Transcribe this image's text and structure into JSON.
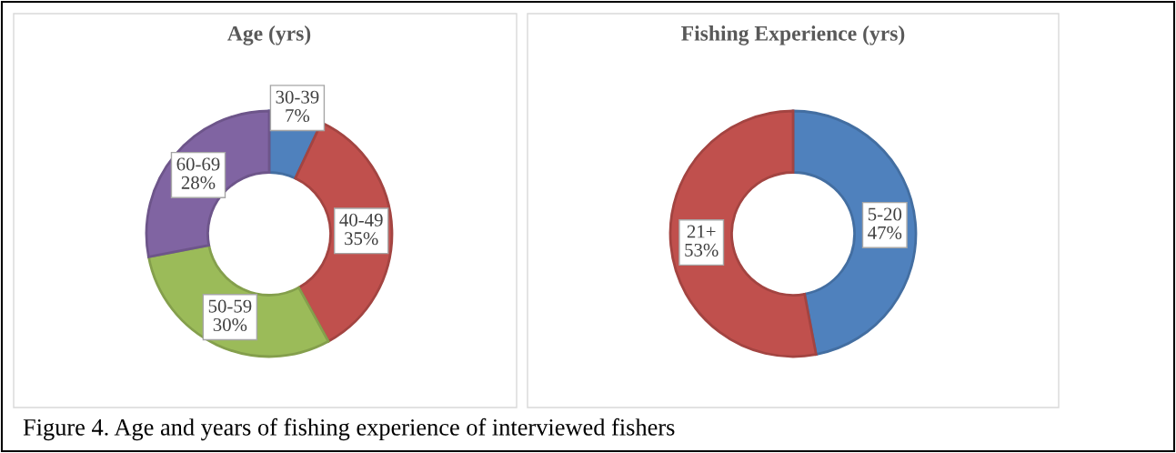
{
  "chart_data": [
    {
      "type": "donut",
      "title": "Age (yrs)",
      "categories": [
        "30-39",
        "40-49",
        "50-59",
        "60-69"
      ],
      "values": [
        7,
        35,
        30,
        28
      ],
      "colors": [
        "#4f81bd",
        "#c0504d",
        "#9bbb59",
        "#8064a2"
      ],
      "value_labels": [
        "7%",
        "35%",
        "30%",
        "28%"
      ]
    },
    {
      "type": "donut",
      "title": "Fishing Experience (yrs)",
      "categories": [
        "5-20",
        "21+"
      ],
      "values": [
        47,
        53
      ],
      "colors": [
        "#4f81bd",
        "#c0504d"
      ],
      "value_labels": [
        "47%",
        "53%"
      ],
      "annotations": [
        "Figure 4. Age and years of fishing experience of interviewed fishers"
      ]
    }
  ]
}
